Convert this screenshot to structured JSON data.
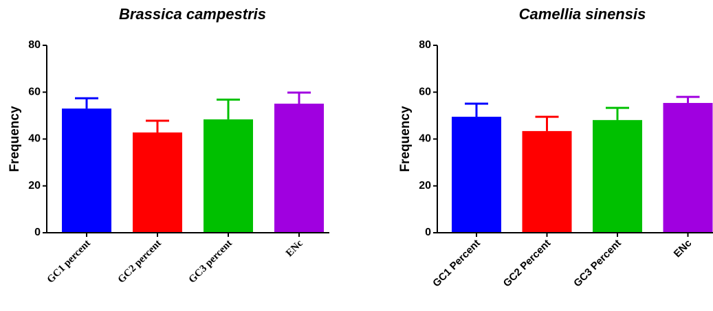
{
  "chart_data": [
    {
      "type": "bar",
      "title": "Brassica campestris",
      "y_label": "Frequency",
      "categories": [
        "GC1 percent",
        "GC2 percent",
        "GC3 percent",
        "ENc"
      ],
      "values": [
        53.0,
        42.8,
        48.4,
        55.1
      ],
      "errors": [
        4.4,
        5.0,
        8.4,
        4.7
      ],
      "colors": [
        "#0000ff",
        "#ff0000",
        "#00c000",
        "#a000e0"
      ],
      "ylim": [
        0,
        80
      ],
      "yticks": [
        0,
        20,
        40,
        60,
        80
      ]
    },
    {
      "type": "bar",
      "title": "Camellia sinensis",
      "y_label": "Frequency",
      "categories": [
        "GC1 Percent",
        "GC2 Percent",
        "GC3 Percent",
        "ENc"
      ],
      "values": [
        49.5,
        43.4,
        48.1,
        55.4
      ],
      "errors": [
        5.6,
        6.1,
        5.2,
        2.6
      ],
      "colors": [
        "#0000ff",
        "#ff0000",
        "#00c000",
        "#a000e0"
      ],
      "ylim": [
        0,
        80
      ],
      "yticks": [
        0,
        20,
        40,
        60,
        80
      ]
    }
  ]
}
